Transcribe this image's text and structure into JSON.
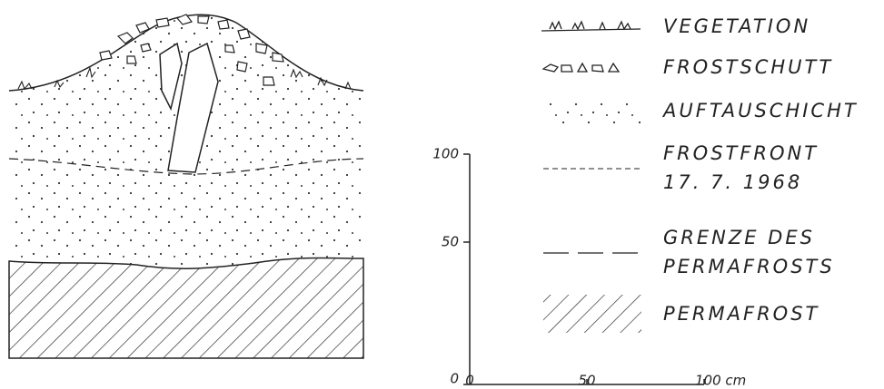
{
  "legend": {
    "items": [
      {
        "lines": [
          "VEGETATION"
        ]
      },
      {
        "lines": [
          "FROSTSCHUTT"
        ]
      },
      {
        "lines": [
          "AUFTAUSCHICHT"
        ]
      },
      {
        "lines": [
          "FROSTFRONT",
          "17. 7. 1968"
        ]
      },
      {
        "lines": [
          "GRENZE  DES",
          "PERMAFROSTS"
        ]
      },
      {
        "lines": [
          "PERMAFROST"
        ]
      }
    ]
  },
  "scale": {
    "y_labels": [
      "100",
      "50",
      "0"
    ],
    "x_labels": [
      "0",
      "50",
      "100 cm"
    ]
  }
}
